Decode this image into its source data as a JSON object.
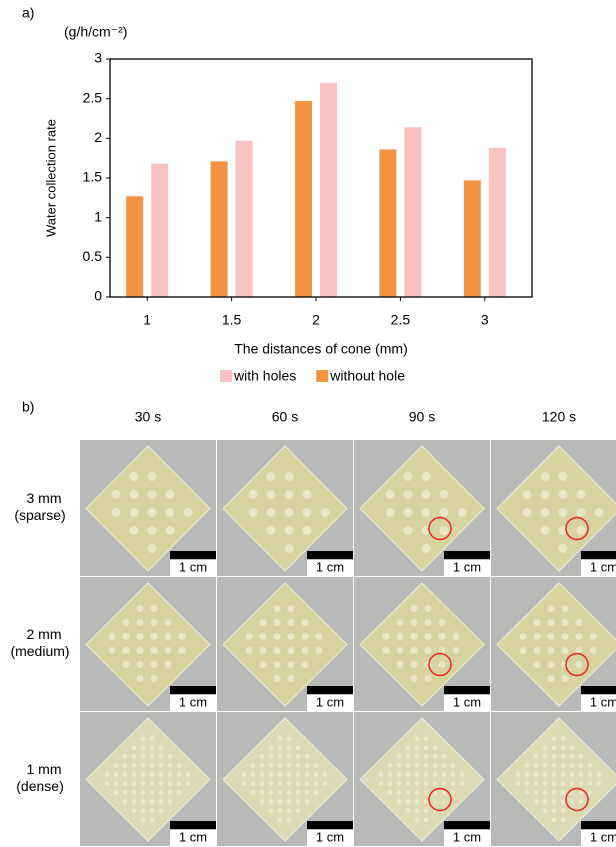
{
  "chart_data": {
    "type": "bar",
    "panel_label": "a)",
    "unit": "(g/h/cm⁻²)",
    "ylabel": "Water collection rate",
    "xlabel": "The distances of cone (mm)",
    "categories": [
      "1",
      "1.5",
      "2",
      "2.5",
      "3"
    ],
    "series": [
      {
        "name": "without hole",
        "color": "#f39443",
        "values": [
          1.27,
          1.71,
          2.47,
          1.86,
          1.47
        ]
      },
      {
        "name": "with holes",
        "color": "#f9c2c2",
        "values": [
          1.68,
          1.97,
          2.7,
          2.14,
          1.88
        ]
      }
    ],
    "ylim": [
      0,
      3
    ],
    "yticks": [
      0,
      0.5,
      1,
      1.5,
      2,
      2.5,
      3
    ],
    "grid": false
  },
  "photo_grid": {
    "panel_label": "b)",
    "columns": [
      "30 s",
      "60 s",
      "90 s",
      "120 s"
    ],
    "rows": [
      {
        "spacing": "3 mm",
        "density": "(sparse)"
      },
      {
        "spacing": "2 mm",
        "density": "(medium)"
      },
      {
        "spacing": "1 mm",
        "density": "(dense)"
      }
    ],
    "scale_bar": "1 cm"
  }
}
